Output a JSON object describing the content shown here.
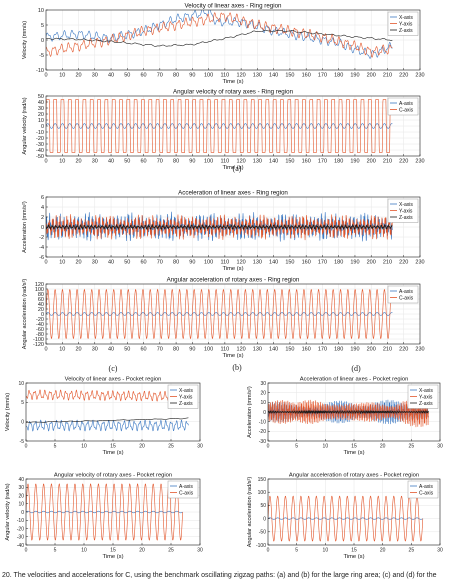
{
  "colors": {
    "blue": "#3b78c2",
    "red": "#e2562b",
    "black": "#1a1a1a",
    "axes": "#222222",
    "grid": "#e6e6e6"
  },
  "figure": {
    "sublabels": {
      "a": "(a)",
      "b": "(b)",
      "c": "(c)",
      "d": "(d)"
    },
    "caption": "20.  The velocities and accelerations for C, using the benchmark oscillating zigzag paths: (a) and (b) for the large ring area; (c) and (d) for the"
  },
  "chart_data": [
    {
      "id": "ring-linear-velocity",
      "type": "line",
      "title": "Velocity of linear axes - Ring region",
      "xlabel": "Time (s)",
      "ylabel": "Velocity (mm/s)",
      "xlim": [
        0,
        230
      ],
      "ylim": [
        -10,
        10
      ],
      "xticks": [
        0,
        10,
        20,
        30,
        40,
        50,
        60,
        70,
        80,
        90,
        100,
        110,
        120,
        130,
        140,
        150,
        160,
        170,
        180,
        190,
        200,
        210,
        220,
        230
      ],
      "yticks": [
        -10,
        -5,
        0,
        5,
        10
      ],
      "legend": "top-right",
      "x_end": 213,
      "series": [
        {
          "name": "X-axis",
          "color": "blue",
          "style": "trend",
          "amp": 1.6,
          "period": 5,
          "trend": [
            [
              0,
              1
            ],
            [
              20,
              2
            ],
            [
              40,
              0.5
            ],
            [
              60,
              3
            ],
            [
              80,
              7
            ],
            [
              100,
              9.5
            ],
            [
              105,
              6
            ],
            [
              120,
              6
            ],
            [
              140,
              3
            ],
            [
              160,
              1
            ],
            [
              180,
              -1
            ],
            [
              200,
              -5
            ],
            [
              213,
              -2
            ]
          ]
        },
        {
          "name": "Y-axis",
          "color": "red",
          "style": "trend",
          "amp": 1.8,
          "period": 4.5,
          "trend": [
            [
              0,
              -4
            ],
            [
              20,
              -2
            ],
            [
              40,
              0
            ],
            [
              60,
              3
            ],
            [
              80,
              5
            ],
            [
              100,
              7
            ],
            [
              110,
              8
            ],
            [
              130,
              5
            ],
            [
              150,
              3
            ],
            [
              170,
              1
            ],
            [
              190,
              -2
            ],
            [
              200,
              -4
            ],
            [
              213,
              -3
            ]
          ]
        },
        {
          "name": "Z-axis",
          "color": "black",
          "style": "trend",
          "amp": 0.3,
          "period": 8,
          "trend": [
            [
              0,
              0.5
            ],
            [
              20,
              0.2
            ],
            [
              40,
              -0.5
            ],
            [
              70,
              -2
            ],
            [
              90,
              -1.5
            ],
            [
              110,
              0.5
            ],
            [
              130,
              3
            ],
            [
              150,
              3
            ],
            [
              170,
              2
            ],
            [
              190,
              1
            ],
            [
              213,
              0
            ]
          ]
        }
      ]
    },
    {
      "id": "ring-angular-velocity",
      "type": "line",
      "title": "Angular velocity of rotary axes - Ring region",
      "xlabel": "Time (s)",
      "ylabel": "Angular velocity (rad/s)",
      "xlim": [
        0,
        230
      ],
      "ylim": [
        -50,
        50
      ],
      "xticks": [
        0,
        10,
        20,
        30,
        40,
        50,
        60,
        70,
        80,
        90,
        100,
        110,
        120,
        130,
        140,
        150,
        160,
        170,
        180,
        190,
        200,
        210,
        220,
        230
      ],
      "yticks": [
        -50,
        -40,
        -30,
        -20,
        -10,
        0,
        10,
        20,
        30,
        40,
        50
      ],
      "legend": "top-right",
      "x_end": 213,
      "series": [
        {
          "name": "A-axis",
          "color": "blue",
          "style": "sine",
          "amp": 4,
          "period": 4.5
        },
        {
          "name": "C-axis",
          "color": "red",
          "style": "square",
          "amp": 44,
          "period": 4.5
        }
      ]
    },
    {
      "id": "ring-linear-acceleration",
      "type": "line",
      "title": "Acceleration of linear axes - Ring region",
      "xlabel": "Time (s)",
      "ylabel": "Acceleration (mm/s²)",
      "xlim": [
        0,
        230
      ],
      "ylim": [
        -6,
        6
      ],
      "xticks": [
        0,
        10,
        20,
        30,
        40,
        50,
        60,
        70,
        80,
        90,
        100,
        110,
        120,
        130,
        140,
        150,
        160,
        170,
        180,
        190,
        200,
        210,
        220,
        230
      ],
      "yticks": [
        -6,
        -4,
        -2,
        0,
        2,
        4,
        6
      ],
      "legend": "top-right",
      "x_end": 213,
      "series": [
        {
          "name": "X-axis",
          "color": "blue",
          "style": "noise",
          "amp": 3.2,
          "period": 2.2
        },
        {
          "name": "Y-axis",
          "color": "red",
          "style": "noise",
          "amp": 2.8,
          "period": 2.2
        },
        {
          "name": "Z-axis",
          "color": "black",
          "style": "noise",
          "amp": 0.6,
          "period": 2.2
        }
      ]
    },
    {
      "id": "ring-angular-acceleration",
      "type": "line",
      "title": "Angular acceleration of rotary axes - Ring region",
      "xlabel": "Time (s)",
      "ylabel": "Angular acceleration (rad/s²)",
      "xlim": [
        0,
        230
      ],
      "ylim": [
        -120,
        120
      ],
      "xticks": [
        0,
        10,
        20,
        30,
        40,
        50,
        60,
        70,
        80,
        90,
        100,
        110,
        120,
        130,
        140,
        150,
        160,
        170,
        180,
        190,
        200,
        210,
        220,
        230
      ],
      "yticks": [
        -120,
        -100,
        -80,
        -60,
        -40,
        -20,
        0,
        20,
        40,
        60,
        80,
        100,
        120
      ],
      "legend": "top-right",
      "x_end": 213,
      "series": [
        {
          "name": "A-axis",
          "color": "blue",
          "style": "sine",
          "amp": 6,
          "period": 4.5
        },
        {
          "name": "C-axis",
          "color": "red",
          "style": "sine",
          "amp": 98,
          "period": 4.5
        }
      ]
    },
    {
      "id": "pocket-linear-velocity",
      "type": "line",
      "title": "Velocity of linear axes - Pocket region",
      "xlabel": "Time (s)",
      "ylabel": "Velocity (mm/s)",
      "xlim": [
        0,
        30
      ],
      "ylim": [
        -5,
        10
      ],
      "xticks": [
        0,
        5,
        10,
        15,
        20,
        25,
        30
      ],
      "yticks": [
        -5,
        0,
        5,
        10
      ],
      "legend": "top-right",
      "x_end": 28,
      "series": [
        {
          "name": "X-axis",
          "color": "blue",
          "style": "trend",
          "amp": 1.4,
          "period": 0.9,
          "trend": [
            [
              0,
              -1
            ],
            [
              28,
              -1
            ]
          ]
        },
        {
          "name": "Y-axis",
          "color": "red",
          "style": "trend",
          "amp": 1.3,
          "period": 0.9,
          "trend": [
            [
              0,
              7
            ],
            [
              28,
              6.5
            ]
          ]
        },
        {
          "name": "Z-axis",
          "color": "black",
          "style": "trend",
          "amp": 0.1,
          "period": 3,
          "trend": [
            [
              0,
              -0.2
            ],
            [
              27,
              0.8
            ],
            [
              28,
              1
            ]
          ]
        }
      ]
    },
    {
      "id": "pocket-linear-acceleration",
      "type": "line",
      "title": "Acceleration of linear axes - Pocket region",
      "xlabel": "Time (s)",
      "ylabel": "Acceleration (mm/s²)",
      "xlim": [
        0,
        30
      ],
      "ylim": [
        -30,
        30
      ],
      "xticks": [
        0,
        5,
        10,
        15,
        20,
        25,
        30
      ],
      "yticks": [
        -30,
        -20,
        -10,
        0,
        10,
        20,
        30
      ],
      "legend": "top-right",
      "x_end": 28,
      "series": [
        {
          "name": "X-axis",
          "color": "blue",
          "style": "noise",
          "amp": 14,
          "period": 0.3
        },
        {
          "name": "Y-axis",
          "color": "red",
          "style": "noise",
          "amp": 16,
          "period": 0.3
        },
        {
          "name": "Z-axis",
          "color": "black",
          "style": "noise",
          "amp": 2,
          "period": 0.3
        }
      ]
    },
    {
      "id": "pocket-angular-velocity",
      "type": "line",
      "title": "Angular velocity of rotary axes - Pocket region",
      "xlabel": "Time (s)",
      "ylabel": "Angular velocity (rad/s)",
      "xlim": [
        0,
        30
      ],
      "ylim": [
        -40,
        40
      ],
      "xticks": [
        0,
        5,
        10,
        15,
        20,
        25,
        30
      ],
      "yticks": [
        -40,
        -30,
        -20,
        -10,
        0,
        10,
        20,
        30,
        40
      ],
      "legend": "top-right",
      "x_end": 27,
      "series": [
        {
          "name": "A-axis",
          "color": "blue",
          "style": "sine",
          "amp": 1,
          "period": 1.35
        },
        {
          "name": "C-axis",
          "color": "red",
          "style": "sine",
          "amp": 34,
          "period": 1.35
        }
      ]
    },
    {
      "id": "pocket-angular-acceleration",
      "type": "line",
      "title": "Angular acceleration of rotary axes - Pocket region",
      "xlabel": "Time (s)",
      "ylabel": "Angular acceleration (rad/s²)",
      "xlim": [
        0,
        30
      ],
      "ylim": [
        -100,
        150
      ],
      "xticks": [
        0,
        5,
        10,
        15,
        20,
        25,
        30
      ],
      "yticks": [
        -100,
        -50,
        0,
        50,
        100,
        150
      ],
      "legend": "top-right",
      "x_end": 27,
      "series": [
        {
          "name": "A-axis",
          "color": "blue",
          "style": "sine",
          "amp": 3,
          "period": 1.35
        },
        {
          "name": "C-axis",
          "color": "red",
          "style": "sine",
          "amp": 85,
          "period": 1.35
        }
      ]
    }
  ]
}
